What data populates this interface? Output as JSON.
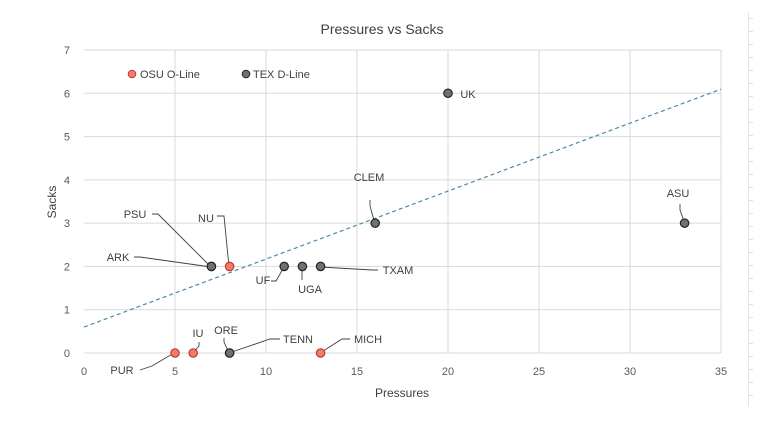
{
  "chart_data": {
    "type": "scatter",
    "title": "Pressures vs Sacks",
    "xlabel": "Pressures",
    "ylabel": "Sacks",
    "xlim": [
      0,
      35
    ],
    "ylim": [
      0,
      7
    ],
    "xticks": [
      0,
      5,
      10,
      15,
      20,
      25,
      30,
      35
    ],
    "yticks": [
      0,
      1,
      2,
      3,
      4,
      5,
      6,
      7
    ],
    "grid": true,
    "legend_position": "top-left",
    "series": [
      {
        "name": "OSU O-Line",
        "color": "#f07b72",
        "edge": "#c0392b",
        "points": [
          {
            "label": "PUR",
            "x": 5,
            "y": 0
          },
          {
            "label": "IU",
            "x": 6,
            "y": 0
          },
          {
            "label": "ORE",
            "x": 8,
            "y": 0
          },
          {
            "label": "MICH",
            "x": 13,
            "y": 0
          },
          {
            "label": "PSU",
            "x": 7,
            "y": 2
          },
          {
            "label": "NU",
            "x": 8,
            "y": 2
          }
        ]
      },
      {
        "name": "TEX D-Line",
        "color": "#707070",
        "edge": "#222222",
        "points": [
          {
            "label": "ARK",
            "x": 7,
            "y": 2
          },
          {
            "label": "TENN",
            "x": 8,
            "y": 0
          },
          {
            "label": "UF",
            "x": 11,
            "y": 2
          },
          {
            "label": "UGA",
            "x": 12,
            "y": 2
          },
          {
            "label": "TXAM",
            "x": 13,
            "y": 2
          },
          {
            "label": "CLEM",
            "x": 16,
            "y": 3
          },
          {
            "label": "UK",
            "x": 20,
            "y": 6
          },
          {
            "label": "ASU",
            "x": 33,
            "y": 3
          }
        ]
      }
    ],
    "trendline": {
      "intercept": 0.6,
      "slope": 0.157,
      "color": "#4a8ba8",
      "style": "dashed"
    }
  }
}
